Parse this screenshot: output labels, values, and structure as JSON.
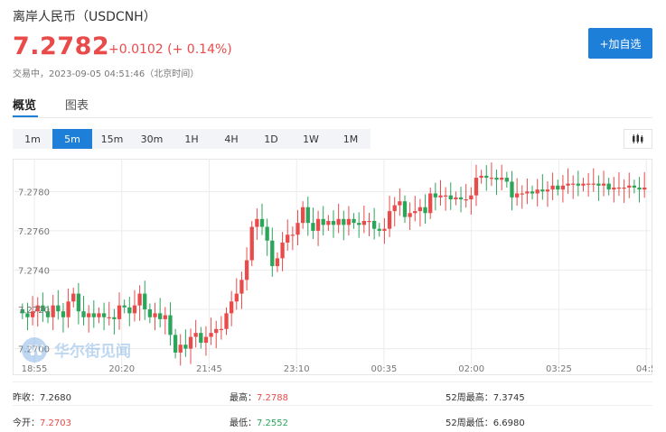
{
  "header": {
    "title": "离岸人民币（USDCNH）",
    "price": "7.2782",
    "change": "+0.0102 (+ 0.14%)",
    "status": "交易中，2023-09-05 04:51:46（北京时间）"
  },
  "actions": {
    "add_watchlist": "+加自选"
  },
  "tabs": [
    {
      "label": "概览"
    },
    {
      "label": "图表"
    }
  ],
  "intervals": [
    {
      "label": "1m"
    },
    {
      "label": "5m"
    },
    {
      "label": "15m"
    },
    {
      "label": "30m"
    },
    {
      "label": "1H"
    },
    {
      "label": "4H"
    },
    {
      "label": "1D"
    },
    {
      "label": "1W"
    },
    {
      "label": "1M"
    }
  ],
  "selected_interval": "5m",
  "watermark": "华尔街见闻",
  "colors": {
    "up": "#e94b4b",
    "down": "#2aa55a",
    "accent": "#1e7fd8"
  },
  "chart_data": {
    "type": "candlestick",
    "y_ticks": [
      "7.2780",
      "7.2760",
      "7.2740",
      "7.2720",
      "7.2700"
    ],
    "x_ticks": [
      "18:55",
      "20:20",
      "21:45",
      "23:10",
      "00:35",
      "02:00",
      "03:25",
      "04:5"
    ],
    "ylim": [
      7.2692,
      7.2793
    ],
    "grid": true,
    "series_close": [
      7.2718,
      7.2716,
      7.2719,
      7.2722,
      7.2719,
      7.2716,
      7.2722,
      7.2719,
      7.2716,
      7.2724,
      7.2728,
      7.2719,
      7.2716,
      7.2718,
      7.2716,
      7.2718,
      7.2716,
      7.2716,
      7.2715,
      7.2722,
      7.2721,
      7.2718,
      7.2722,
      7.2728,
      7.272,
      7.2716,
      7.2718,
      7.2715,
      7.2717,
      7.2707,
      7.2698,
      7.2702,
      7.27,
      7.2706,
      7.2708,
      7.2703,
      7.2706,
      7.2708,
      7.271,
      7.271,
      7.2718,
      7.2724,
      7.2728,
      7.2735,
      7.2745,
      7.2762,
      7.2766,
      7.2762,
      7.2755,
      7.2742,
      7.2746,
      7.2754,
      7.2758,
      7.2758,
      7.2764,
      7.2772,
      7.2764,
      7.276,
      7.2766,
      7.2763,
      7.2765,
      7.2763,
      7.2766,
      7.2763,
      7.2766,
      7.2764,
      7.2763,
      7.2765,
      7.2765,
      7.2761,
      7.276,
      7.2761,
      7.277,
      7.2773,
      7.2775,
      7.2767,
      7.2769,
      7.277,
      7.2772,
      7.2769,
      7.2779,
      7.2777,
      7.2778,
      7.2778,
      7.2776,
      7.2777,
      7.2776,
      7.2776,
      7.2778,
      7.2787,
      7.2788,
      7.2787,
      7.2787,
      7.2786,
      7.2787,
      7.2785,
      7.2777,
      7.2779,
      7.2779,
      7.278,
      7.2779,
      7.2781,
      7.278,
      7.2781,
      7.2783,
      7.2781,
      7.2783,
      7.2784,
      7.2784,
      7.2783,
      7.2784,
      7.2784,
      7.2784,
      7.2783,
      7.2784,
      7.2781,
      7.2782,
      7.2782,
      7.2782,
      7.2783,
      7.2782,
      7.2781,
      7.2782
    ]
  },
  "stats": {
    "prev_close_label": "昨收：",
    "prev_close": "7.2680",
    "high_label": "最高：",
    "high": "7.2788",
    "high52_label": "52周最高：",
    "high52": "7.3745",
    "open_label": "今开：",
    "open": "7.2703",
    "low_label": "最低：",
    "low": "7.2552",
    "low52_label": "52周最低：",
    "low52": "6.6980"
  }
}
